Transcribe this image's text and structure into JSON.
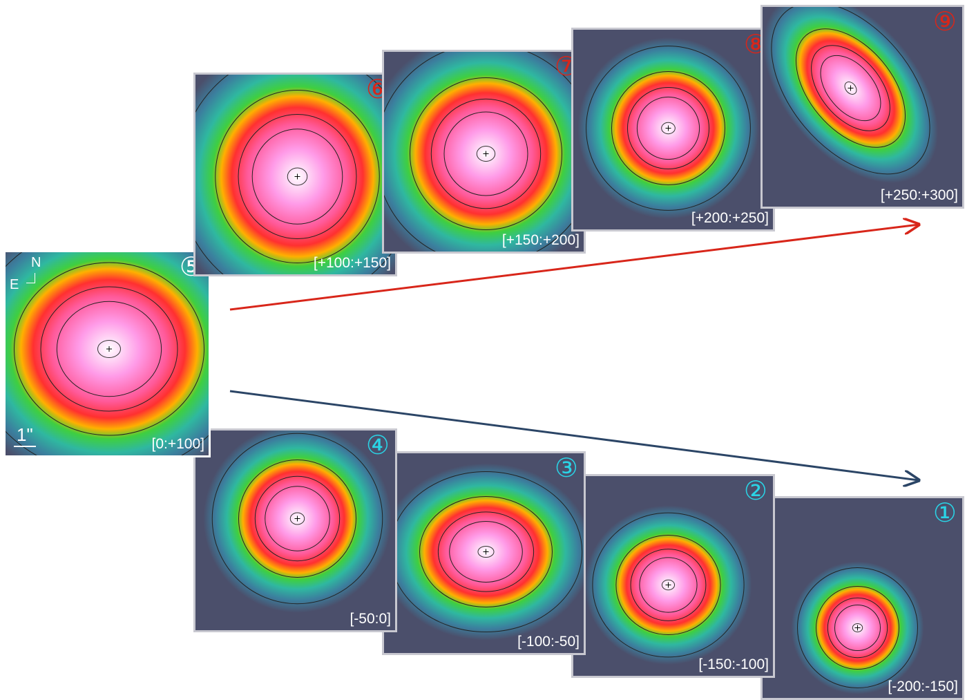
{
  "panels": [
    {
      "number": "①",
      "range": "[-200:-150]"
    },
    {
      "number": "②",
      "range": "[-150:-100]"
    },
    {
      "number": "③",
      "range": "[-100:-50]"
    },
    {
      "number": "④",
      "range": "[-50:0]"
    },
    {
      "number": "⑤",
      "range": "[0:+100]"
    },
    {
      "number": "⑥",
      "range": "[+100:+150]"
    },
    {
      "number": "⑦",
      "range": "[+150:+200]"
    },
    {
      "number": "⑧",
      "range": "[+200:+250]"
    },
    {
      "number": "⑨",
      "range": "[+250:+300]"
    }
  ],
  "compass": {
    "north": "N",
    "east": "E"
  },
  "scale_bar": "1\""
}
